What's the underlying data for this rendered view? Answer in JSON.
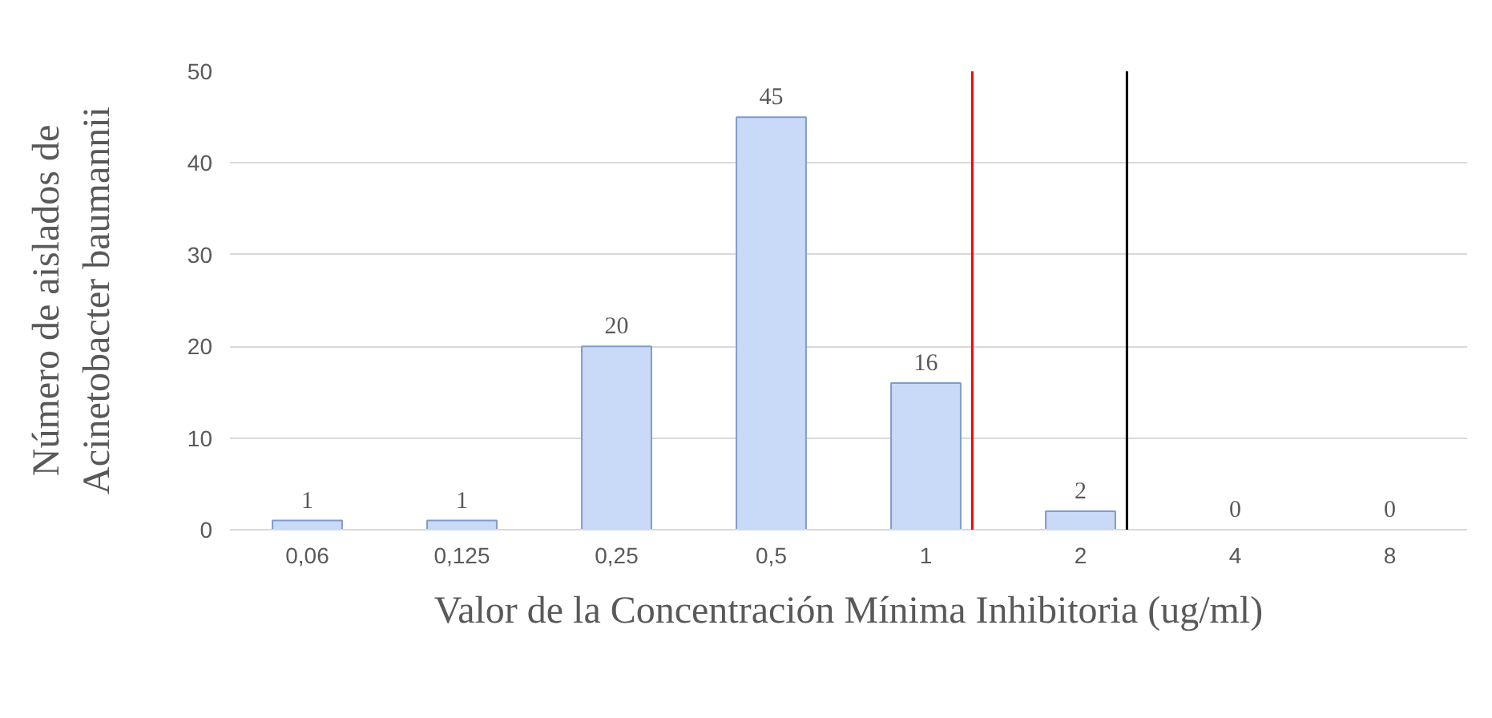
{
  "chart_data": {
    "type": "bar",
    "xlabel": "Valor de la Concentración Mínima Inhibitoria (ug/ml)",
    "ylabel": "Número de aislados de\nAcinetobacter baumannii",
    "categories": [
      "0,06",
      "0,125",
      "0,25",
      "0,5",
      "1",
      "2",
      "4",
      "8"
    ],
    "values": [
      1,
      1,
      20,
      45,
      16,
      2,
      0,
      0
    ],
    "color": "#c9daf8",
    "ylim": [
      0,
      50
    ],
    "yticks": [
      0,
      10,
      20,
      30,
      40,
      50
    ],
    "grid": "y",
    "data_labels": true,
    "ref_lines": [
      {
        "axis": "x",
        "value": "1",
        "color": "#ff0000"
      },
      {
        "axis": "x",
        "value": "2",
        "color": "#000000"
      }
    ]
  }
}
